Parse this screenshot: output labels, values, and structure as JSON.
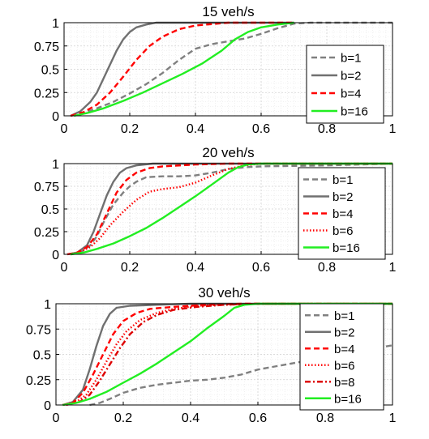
{
  "chart_data": [
    {
      "type": "line",
      "title": "15 veh/s",
      "xlim": [
        0,
        1
      ],
      "ylim": [
        0,
        1
      ],
      "xticks": [
        "0",
        "0.2",
        "0.4",
        "0.6",
        "0.8",
        "1"
      ],
      "yticks": [
        "0",
        "0.25",
        "0.5",
        "0.75",
        "1"
      ],
      "grid": "on (major + minor, dotted)",
      "legend_position": "bottom-right",
      "series": [
        {
          "name": "b=1",
          "color": "#808080",
          "dash": "dashed",
          "points": [
            [
              0.02,
              0
            ],
            [
              0.05,
              0.02
            ],
            [
              0.1,
              0.08
            ],
            [
              0.15,
              0.15
            ],
            [
              0.2,
              0.24
            ],
            [
              0.25,
              0.34
            ],
            [
              0.3,
              0.46
            ],
            [
              0.35,
              0.6
            ],
            [
              0.4,
              0.72
            ],
            [
              0.45,
              0.77
            ],
            [
              0.5,
              0.8
            ],
            [
              0.55,
              0.83
            ],
            [
              0.6,
              0.88
            ],
            [
              0.65,
              0.94
            ],
            [
              0.7,
              0.99
            ],
            [
              0.75,
              1.0
            ],
            [
              1.0,
              1.0
            ]
          ]
        },
        {
          "name": "b=2",
          "color": "#707070",
          "dash": "solid",
          "points": [
            [
              0.02,
              0
            ],
            [
              0.05,
              0.05
            ],
            [
              0.08,
              0.15
            ],
            [
              0.1,
              0.25
            ],
            [
              0.12,
              0.4
            ],
            [
              0.14,
              0.55
            ],
            [
              0.16,
              0.7
            ],
            [
              0.18,
              0.82
            ],
            [
              0.2,
              0.9
            ],
            [
              0.22,
              0.95
            ],
            [
              0.25,
              0.98
            ],
            [
              0.28,
              1.0
            ],
            [
              0.7,
              1.0
            ]
          ]
        },
        {
          "name": "b=4",
          "color": "#ff0000",
          "dash": "dashed",
          "points": [
            [
              0.02,
              0
            ],
            [
              0.06,
              0.04
            ],
            [
              0.1,
              0.12
            ],
            [
              0.14,
              0.25
            ],
            [
              0.18,
              0.42
            ],
            [
              0.22,
              0.6
            ],
            [
              0.26,
              0.75
            ],
            [
              0.3,
              0.85
            ],
            [
              0.35,
              0.93
            ],
            [
              0.4,
              0.97
            ],
            [
              0.5,
              1.0
            ],
            [
              0.7,
              1.0
            ]
          ]
        },
        {
          "name": "b=16",
          "color": "#22ee22",
          "dash": "solid",
          "points": [
            [
              0.03,
              0
            ],
            [
              0.07,
              0.03
            ],
            [
              0.12,
              0.08
            ],
            [
              0.18,
              0.16
            ],
            [
              0.24,
              0.25
            ],
            [
              0.3,
              0.35
            ],
            [
              0.36,
              0.45
            ],
            [
              0.42,
              0.56
            ],
            [
              0.48,
              0.7
            ],
            [
              0.52,
              0.82
            ],
            [
              0.56,
              0.9
            ],
            [
              0.6,
              0.95
            ],
            [
              0.65,
              0.98
            ],
            [
              0.7,
              1.0
            ]
          ]
        }
      ]
    },
    {
      "type": "line",
      "title": "20 veh/s",
      "xlim": [
        0,
        1
      ],
      "ylim": [
        0,
        1
      ],
      "xticks": [
        "0",
        "0.2",
        "0.4",
        "0.6",
        "0.8",
        "1"
      ],
      "yticks": [
        "0",
        "0.25",
        "0.5",
        "0.75",
        "1"
      ],
      "grid": "on (major + minor, dotted)",
      "legend_position": "right",
      "series": [
        {
          "name": "b=1",
          "color": "#808080",
          "dash": "dashed",
          "points": [
            [
              0.02,
              0
            ],
            [
              0.05,
              0.02
            ],
            [
              0.08,
              0.1
            ],
            [
              0.1,
              0.2
            ],
            [
              0.12,
              0.35
            ],
            [
              0.15,
              0.55
            ],
            [
              0.18,
              0.68
            ],
            [
              0.2,
              0.75
            ],
            [
              0.22,
              0.8
            ],
            [
              0.25,
              0.85
            ],
            [
              0.3,
              0.86
            ],
            [
              0.35,
              0.86
            ],
            [
              0.4,
              0.87
            ],
            [
              0.45,
              0.9
            ],
            [
              0.5,
              0.94
            ],
            [
              0.55,
              0.96
            ],
            [
              0.6,
              0.97
            ],
            [
              0.8,
              0.98
            ],
            [
              1.0,
              1.0
            ]
          ]
        },
        {
          "name": "b=2",
          "color": "#707070",
          "dash": "solid",
          "points": [
            [
              0.01,
              0
            ],
            [
              0.04,
              0.02
            ],
            [
              0.07,
              0.1
            ],
            [
              0.09,
              0.25
            ],
            [
              0.11,
              0.45
            ],
            [
              0.13,
              0.65
            ],
            [
              0.15,
              0.8
            ],
            [
              0.17,
              0.9
            ],
            [
              0.19,
              0.95
            ],
            [
              0.22,
              0.98
            ],
            [
              0.27,
              1.0
            ],
            [
              1.0,
              1.0
            ]
          ]
        },
        {
          "name": "b=4",
          "color": "#ff0000",
          "dash": "dashed",
          "points": [
            [
              0.01,
              0
            ],
            [
              0.04,
              0.02
            ],
            [
              0.07,
              0.08
            ],
            [
              0.1,
              0.22
            ],
            [
              0.13,
              0.45
            ],
            [
              0.16,
              0.68
            ],
            [
              0.19,
              0.82
            ],
            [
              0.22,
              0.9
            ],
            [
              0.26,
              0.95
            ],
            [
              0.3,
              0.97
            ],
            [
              0.4,
              0.99
            ],
            [
              0.5,
              1.0
            ],
            [
              1.0,
              1.0
            ]
          ]
        },
        {
          "name": "b=6",
          "color": "#ff0000",
          "dash": "dotted",
          "points": [
            [
              0.02,
              0
            ],
            [
              0.05,
              0.03
            ],
            [
              0.08,
              0.08
            ],
            [
              0.11,
              0.18
            ],
            [
              0.14,
              0.32
            ],
            [
              0.18,
              0.47
            ],
            [
              0.22,
              0.6
            ],
            [
              0.26,
              0.69
            ],
            [
              0.3,
              0.72
            ],
            [
              0.35,
              0.74
            ],
            [
              0.4,
              0.79
            ],
            [
              0.45,
              0.87
            ],
            [
              0.5,
              0.94
            ],
            [
              0.55,
              0.98
            ],
            [
              0.6,
              1.0
            ],
            [
              1.0,
              1.0
            ]
          ]
        },
        {
          "name": "b=16",
          "color": "#22ee22",
          "dash": "solid",
          "points": [
            [
              0.02,
              0
            ],
            [
              0.06,
              0.02
            ],
            [
              0.1,
              0.06
            ],
            [
              0.15,
              0.12
            ],
            [
              0.2,
              0.2
            ],
            [
              0.25,
              0.29
            ],
            [
              0.3,
              0.4
            ],
            [
              0.35,
              0.52
            ],
            [
              0.4,
              0.64
            ],
            [
              0.45,
              0.77
            ],
            [
              0.5,
              0.9
            ],
            [
              0.53,
              0.96
            ],
            [
              0.56,
              0.99
            ],
            [
              0.6,
              1.0
            ],
            [
              1.0,
              1.0
            ]
          ]
        }
      ]
    },
    {
      "type": "line",
      "title": "30 veh/s",
      "xlim": [
        0,
        1
      ],
      "ylim": [
        0,
        1
      ],
      "xticks": [
        "0",
        "0.2",
        "0.4",
        "0.6",
        "0.8",
        "1"
      ],
      "yticks": [
        "0",
        "0.25",
        "0.5",
        "0.75",
        "1"
      ],
      "grid": "on (major + minor, dotted)",
      "legend_position": "right",
      "series": [
        {
          "name": "b=1",
          "color": "#808080",
          "dash": "dashed",
          "points": [
            [
              0.1,
              0
            ],
            [
              0.13,
              0.02
            ],
            [
              0.16,
              0.06
            ],
            [
              0.2,
              0.12
            ],
            [
              0.25,
              0.17
            ],
            [
              0.3,
              0.2
            ],
            [
              0.35,
              0.22
            ],
            [
              0.4,
              0.24
            ],
            [
              0.45,
              0.25
            ],
            [
              0.5,
              0.27
            ],
            [
              0.55,
              0.3
            ],
            [
              0.6,
              0.35
            ],
            [
              0.65,
              0.38
            ],
            [
              0.7,
              0.41
            ],
            [
              0.75,
              0.44
            ],
            [
              0.8,
              0.46
            ],
            [
              0.85,
              0.48
            ],
            [
              0.9,
              0.52
            ],
            [
              0.95,
              0.56
            ],
            [
              1.0,
              0.59
            ]
          ]
        },
        {
          "name": "b=2",
          "color": "#707070",
          "dash": "solid",
          "points": [
            [
              0.02,
              0
            ],
            [
              0.05,
              0.03
            ],
            [
              0.08,
              0.15
            ],
            [
              0.1,
              0.35
            ],
            [
              0.12,
              0.58
            ],
            [
              0.14,
              0.78
            ],
            [
              0.16,
              0.9
            ],
            [
              0.18,
              0.96
            ],
            [
              0.22,
              0.98
            ],
            [
              0.3,
              0.99
            ],
            [
              0.4,
              1.0
            ],
            [
              1.0,
              1.0
            ]
          ]
        },
        {
          "name": "b=4",
          "color": "#ff0000",
          "dash": "dashed",
          "points": [
            [
              0.02,
              0
            ],
            [
              0.05,
              0.02
            ],
            [
              0.08,
              0.12
            ],
            [
              0.11,
              0.3
            ],
            [
              0.14,
              0.5
            ],
            [
              0.17,
              0.7
            ],
            [
              0.2,
              0.83
            ],
            [
              0.24,
              0.91
            ],
            [
              0.28,
              0.95
            ],
            [
              0.35,
              0.97
            ],
            [
              0.45,
              0.99
            ],
            [
              0.55,
              1.0
            ],
            [
              1.0,
              1.0
            ]
          ]
        },
        {
          "name": "b=6",
          "color": "#ff0000",
          "dash": "dotted",
          "points": [
            [
              0.02,
              0
            ],
            [
              0.06,
              0.03
            ],
            [
              0.09,
              0.1
            ],
            [
              0.12,
              0.25
            ],
            [
              0.15,
              0.43
            ],
            [
              0.18,
              0.6
            ],
            [
              0.21,
              0.73
            ],
            [
              0.25,
              0.84
            ],
            [
              0.3,
              0.91
            ],
            [
              0.35,
              0.95
            ],
            [
              0.42,
              0.98
            ],
            [
              0.5,
              0.99
            ],
            [
              0.6,
              1.0
            ],
            [
              1.0,
              1.0
            ]
          ]
        },
        {
          "name": "b=8",
          "color": "#dd0000",
          "dash": "dashdot",
          "points": [
            [
              0.03,
              0
            ],
            [
              0.07,
              0.03
            ],
            [
              0.1,
              0.1
            ],
            [
              0.13,
              0.24
            ],
            [
              0.16,
              0.4
            ],
            [
              0.19,
              0.56
            ],
            [
              0.22,
              0.7
            ],
            [
              0.26,
              0.82
            ],
            [
              0.3,
              0.89
            ],
            [
              0.35,
              0.94
            ],
            [
              0.42,
              0.97
            ],
            [
              0.5,
              0.99
            ],
            [
              0.6,
              1.0
            ],
            [
              1.0,
              1.0
            ]
          ]
        },
        {
          "name": "b=16",
          "color": "#22ee22",
          "dash": "solid",
          "points": [
            [
              0.02,
              0
            ],
            [
              0.06,
              0.02
            ],
            [
              0.1,
              0.06
            ],
            [
              0.15,
              0.13
            ],
            [
              0.2,
              0.22
            ],
            [
              0.25,
              0.31
            ],
            [
              0.3,
              0.41
            ],
            [
              0.35,
              0.52
            ],
            [
              0.4,
              0.63
            ],
            [
              0.45,
              0.76
            ],
            [
              0.5,
              0.88
            ],
            [
              0.53,
              0.96
            ],
            [
              0.56,
              0.99
            ],
            [
              0.6,
              1.0
            ],
            [
              1.0,
              1.0
            ]
          ]
        }
      ]
    }
  ]
}
